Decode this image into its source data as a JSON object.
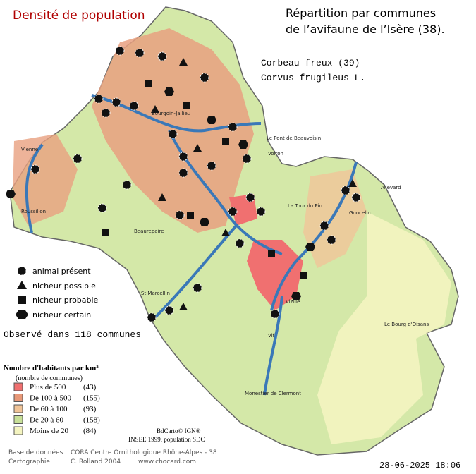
{
  "header": {
    "title": "Densité de population",
    "heading": [
      "Répartition par communes",
      "de l’avifaune de l’Isère (38)."
    ],
    "species": "Corbeau freux  (39)",
    "latin": "Corvus frugileus L."
  },
  "symbols": [
    "animal présent",
    "nicheur possible",
    "nicheur probable",
    "nicheur certain"
  ],
  "observed": "Observé dans 118 communes",
  "density_legend": {
    "title": "Nombre d'habitants par km²",
    "subtitle": "(nombre de communes)",
    "items": [
      {
        "label": "Plus de 500",
        "count": "(43)",
        "color": "#f07070"
      },
      {
        "label": "De 100 à 500",
        "count": "(155)",
        "color": "#e89878"
      },
      {
        "label": "De 60 à 100",
        "count": "(93)",
        "color": "#f0c498"
      },
      {
        "label": "De 20 à 60",
        "count": "(158)",
        "color": "#c8e098"
      },
      {
        "label": "Moins de 20",
        "count": "(84)",
        "color": "#f4f4c0"
      }
    ]
  },
  "places": [
    "Vienne",
    "Roussillon",
    "Le Pont de Beauvoisin",
    "La Tour du Pin",
    "Allevard",
    "Goncelin",
    "Voiron",
    "St Marcellin",
    "Vizille",
    "Le Bourg d'Oisans",
    "Monestier de Clermont",
    "Vif",
    "Beaurepaire",
    "Bourgoin-Jallieu"
  ],
  "credits": {
    "sources": [
      "BdCarto© IGN®",
      "INSEE 1999, population SDC"
    ],
    "db_label": "Base de données",
    "db_value": "CORA Centre Ornithologique Rhône-Alpes - 38",
    "carto_label": "Cartographie",
    "carto_value": "C. Rolland 2004",
    "site": "www.chocard.com",
    "date": "28-06-2025 18:06"
  }
}
